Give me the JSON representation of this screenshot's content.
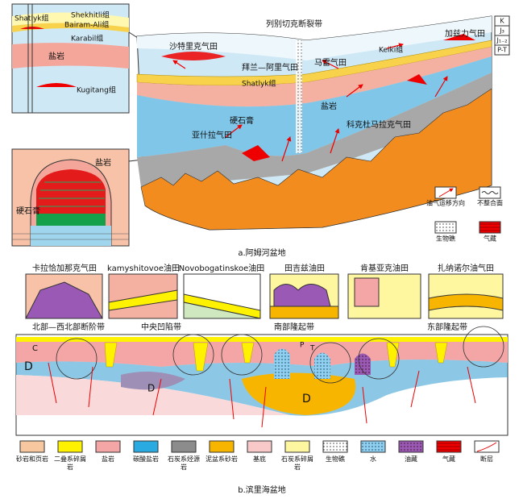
{
  "panel_a": {
    "caption": "a.阿姆河盆地",
    "inset_top": {
      "labels": [
        "Shatlyk组",
        "Shekhitli组",
        "Bairam-Ali组",
        "Karabil组",
        "盐岩",
        "Kugitang组"
      ]
    },
    "inset_bottom": {
      "labels": [
        "盐岩",
        "硬石膏"
      ]
    },
    "section": {
      "labels": [
        "列别切克断裂带",
        "沙特里克气田",
        "拜兰—阿里气田",
        "马雷气田",
        "Keiki组",
        "加兹力气田",
        "Shatlyk组",
        "盐岩",
        "硬石膏",
        "亚什拉气田",
        "科克杜马拉克气田"
      ],
      "strata": [
        "K",
        "J₃",
        "J₁₋₂",
        "P-T"
      ]
    },
    "legend": [
      "油气运移方向",
      "不整合面",
      "生物礁",
      "气藏"
    ]
  },
  "panel_b": {
    "caption": "b.滨里海盆地",
    "insets": [
      "卡拉恰加那克气田",
      "kamyshitovoe油田",
      "Novobogatinskoe油田",
      "田吉兹油田",
      "肯基亚克油田",
      "扎纳诺尔油气田"
    ],
    "zones": [
      "北部—西北部断阶带",
      "中央凹陷带",
      "南部隆起带",
      "东部隆起带"
    ],
    "labels": [
      "D",
      "D",
      "D",
      "C",
      "P",
      "T"
    ],
    "legend": [
      "砂岩和页岩",
      "二叠系碎屑岩",
      "盐岩",
      "碳酸盐岩",
      "石炭系烃源岩",
      "泥盆系砂岩",
      "基底",
      "石炭系碎屑岩",
      "生物礁",
      "水",
      "油藏",
      "气藏",
      "断层"
    ]
  }
}
